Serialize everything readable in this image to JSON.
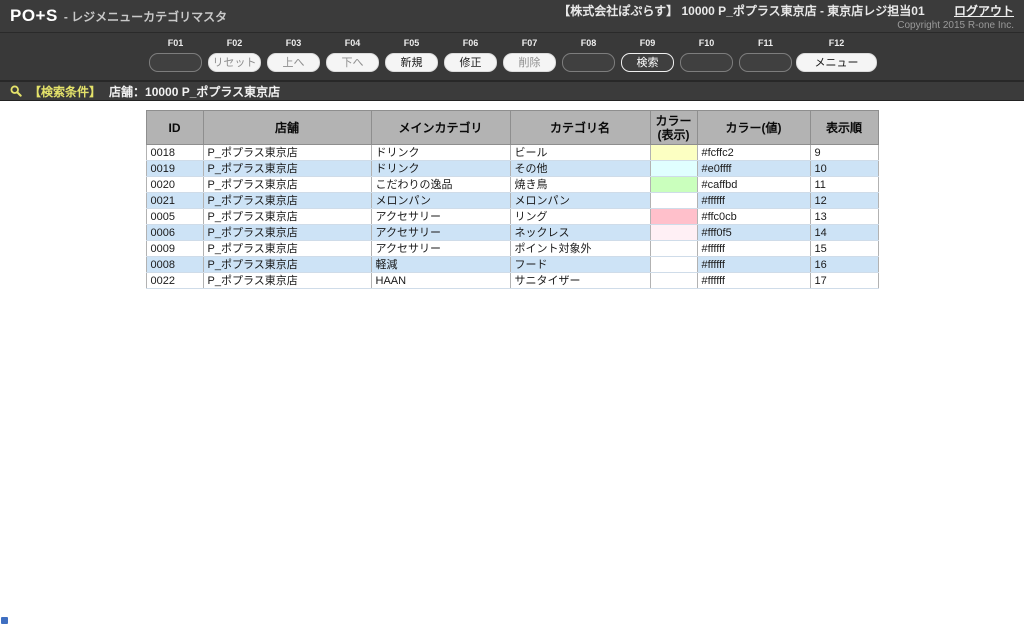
{
  "header": {
    "app_name": "PO+S",
    "app_subtitle": "- レジメニューカテゴリマスタ",
    "user_info": "【株式会社ぽぷらす】 10000 P_ポプラス東京店 - 東京店レジ担当01",
    "logout_label": "ログアウト",
    "copyright": "Copyright 2015 R-one Inc."
  },
  "function_keys": [
    {
      "key": "F01",
      "label": "",
      "style": "empty",
      "wide": false
    },
    {
      "key": "F02",
      "label": "リセット",
      "style": "muted",
      "wide": false
    },
    {
      "key": "F03",
      "label": "上へ",
      "style": "muted",
      "wide": false
    },
    {
      "key": "F04",
      "label": "下へ",
      "style": "muted",
      "wide": false
    },
    {
      "key": "F05",
      "label": "新規",
      "style": "normal",
      "wide": false
    },
    {
      "key": "F06",
      "label": "修正",
      "style": "normal",
      "wide": false
    },
    {
      "key": "F07",
      "label": "削除",
      "style": "muted",
      "wide": false
    },
    {
      "key": "F08",
      "label": "",
      "style": "empty",
      "wide": false
    },
    {
      "key": "F09",
      "label": "検索",
      "style": "inverted",
      "wide": false
    },
    {
      "key": "F10",
      "label": "",
      "style": "empty",
      "wide": false
    },
    {
      "key": "F11",
      "label": "",
      "style": "empty",
      "wide": false
    },
    {
      "key": "F12",
      "label": "メニュー",
      "style": "normal",
      "wide": true
    }
  ],
  "search_bar": {
    "icon": "magnifier-icon",
    "label": "【検索条件】",
    "condition": "店舗：10000 P_ポプラス東京店"
  },
  "table": {
    "columns": [
      {
        "label": "ID"
      },
      {
        "label": "店舗"
      },
      {
        "label": "メインカテゴリ"
      },
      {
        "label": "カテゴリ名"
      },
      {
        "label": "カラー",
        "label2": "(表示)"
      },
      {
        "label": "カラー(値)"
      },
      {
        "label": "表示順"
      }
    ],
    "rows": [
      {
        "id": "0018",
        "store": "P_ポプラス東京店",
        "main_category": "ドリンク",
        "category_name": "ビール",
        "color_value": "#fcffc2",
        "display_order": "9"
      },
      {
        "id": "0019",
        "store": "P_ポプラス東京店",
        "main_category": "ドリンク",
        "category_name": "その他",
        "color_value": "#e0ffff",
        "display_order": "10"
      },
      {
        "id": "0020",
        "store": "P_ポプラス東京店",
        "main_category": "こだわりの逸品",
        "category_name": "焼き鳥",
        "color_value": "#caffbd",
        "display_order": "11"
      },
      {
        "id": "0021",
        "store": "P_ポプラス東京店",
        "main_category": "メロンパン",
        "category_name": "メロンパン",
        "color_value": "#ffffff",
        "display_order": "12"
      },
      {
        "id": "0005",
        "store": "P_ポプラス東京店",
        "main_category": "アクセサリー",
        "category_name": "リング",
        "color_value": "#ffc0cb",
        "display_order": "13"
      },
      {
        "id": "0006",
        "store": "P_ポプラス東京店",
        "main_category": "アクセサリー",
        "category_name": "ネックレス",
        "color_value": "#fff0f5",
        "display_order": "14"
      },
      {
        "id": "0009",
        "store": "P_ポプラス東京店",
        "main_category": "アクセサリー",
        "category_name": "ポイント対象外",
        "color_value": "#ffffff",
        "display_order": "15"
      },
      {
        "id": "0008",
        "store": "P_ポプラス東京店",
        "main_category": "軽減",
        "category_name": "フード",
        "color_value": "#ffffff",
        "display_order": "16"
      },
      {
        "id": "0022",
        "store": "P_ポプラス東京店",
        "main_category": "HAAN",
        "category_name": "サニタイザー",
        "color_value": "#ffffff",
        "display_order": "17"
      }
    ]
  },
  "colors": {
    "bar_background": "#3b3b3b",
    "accent_yellow": "#e4e26a",
    "header_cell_background": "#b3b3b3",
    "alt_row_background": "#cde3f6"
  }
}
